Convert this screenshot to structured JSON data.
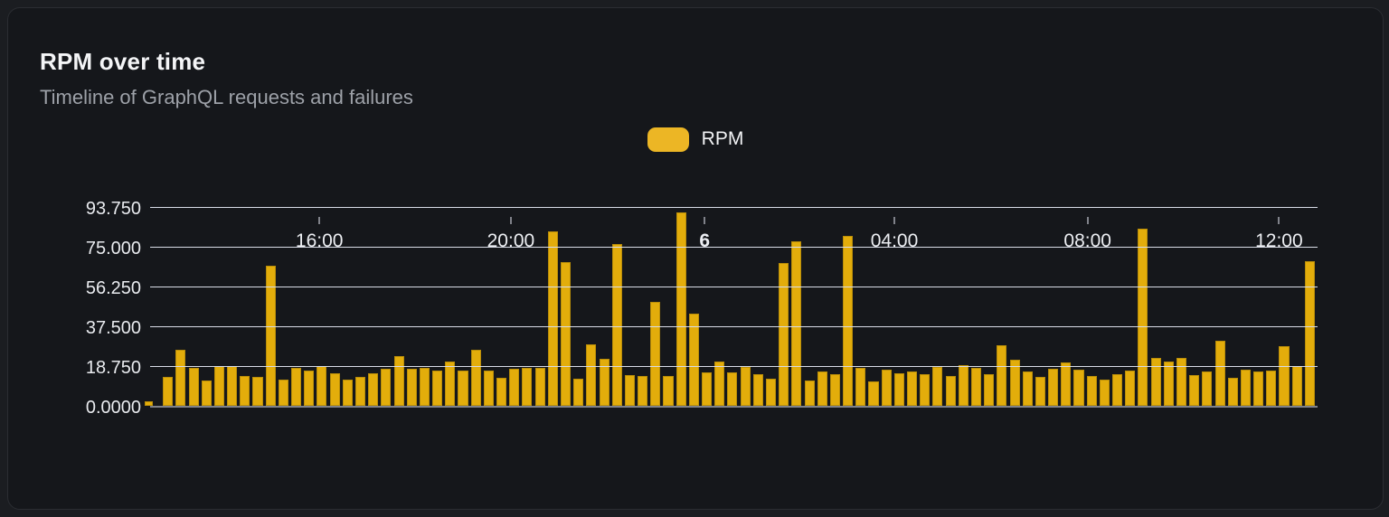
{
  "card": {
    "title": "RPM over time",
    "subtitle": "Timeline of GraphQL requests and failures"
  },
  "legend": {
    "items": [
      {
        "label": "RPM",
        "swatch_color": "#ecb625"
      }
    ]
  },
  "colors": {
    "page_bg": "#1b1d21",
    "card_bg": "#15171b",
    "card_border": "#2b2d32",
    "bar": "#e3ad0b",
    "gridline": "#d9dde8",
    "axis": "#80828a",
    "title_text": "#f4f5f7",
    "subtitle_text": "#9da1a8",
    "tick_text": "#eceef2"
  },
  "chart_data": {
    "type": "bar",
    "title": "RPM over time",
    "xlabel": "",
    "ylabel": "",
    "series": [
      {
        "name": "RPM",
        "values": [
          2,
          13.5,
          26.3,
          17.8,
          11.8,
          18.6,
          18.6,
          13.9,
          13.5,
          66,
          12.5,
          17.8,
          16.5,
          18.9,
          15.3,
          12.5,
          13.6,
          15.3,
          17.3,
          23.4,
          17.3,
          18,
          16.8,
          20.7,
          16.8,
          26.3,
          16.8,
          13.3,
          17.6,
          17.7,
          17.7,
          82.3,
          67.7,
          12.7,
          28.9,
          22.3,
          76.5,
          14.5,
          14.1,
          49,
          14.1,
          91.3,
          43.3,
          15.8,
          20.7,
          15.9,
          18.3,
          15,
          12.6,
          67.5,
          77.7,
          12.1,
          16,
          15,
          80,
          17.8,
          11.7,
          16.9,
          15.2,
          16,
          15,
          18.5,
          14.1,
          19.2,
          17.7,
          14.8,
          28.7,
          21.6,
          16,
          13.8,
          17.4,
          20.6,
          17,
          14.1,
          12.2,
          14.8,
          16.7,
          83.4,
          22.6,
          21,
          22.8,
          14.3,
          16,
          30.5,
          13.1,
          17,
          16,
          16.7,
          28,
          18.8,
          68
        ]
      }
    ],
    "y_ticks": [
      {
        "label": "0.0000",
        "value": 0
      },
      {
        "label": "18.750",
        "value": 18.75
      },
      {
        "label": "37.500",
        "value": 37.5
      },
      {
        "label": "56.250",
        "value": 56.25
      },
      {
        "label": "75.000",
        "value": 75
      },
      {
        "label": "93.750",
        "value": 93.75
      }
    ],
    "x_ticks": [
      {
        "label": "16:00",
        "pos": 0.145,
        "bold": false
      },
      {
        "label": "20:00",
        "pos": 0.309,
        "bold": false
      },
      {
        "label": "6",
        "pos": 0.475,
        "bold": true
      },
      {
        "label": "04:00",
        "pos": 0.6375,
        "bold": false
      },
      {
        "label": "08:00",
        "pos": 0.803,
        "bold": false
      },
      {
        "label": "12:00",
        "pos": 0.967,
        "bold": false
      }
    ],
    "ylim": [
      0,
      97.6
    ],
    "grid": "horizontal",
    "legend_position": "top-center"
  }
}
